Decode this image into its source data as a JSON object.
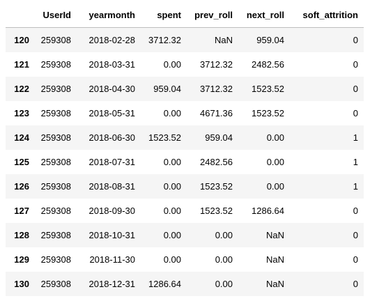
{
  "table": {
    "columns": [
      "",
      "UserId",
      "yearmonth",
      "spent",
      "prev_roll",
      "next_roll",
      "soft_attrition"
    ],
    "rows": [
      {
        "index": "120",
        "UserId": "259308",
        "yearmonth": "2018-02-28",
        "spent": "3712.32",
        "prev_roll": "NaN",
        "next_roll": "959.04",
        "soft_attrition": "0"
      },
      {
        "index": "121",
        "UserId": "259308",
        "yearmonth": "2018-03-31",
        "spent": "0.00",
        "prev_roll": "3712.32",
        "next_roll": "2482.56",
        "soft_attrition": "0"
      },
      {
        "index": "122",
        "UserId": "259308",
        "yearmonth": "2018-04-30",
        "spent": "959.04",
        "prev_roll": "3712.32",
        "next_roll": "1523.52",
        "soft_attrition": "0"
      },
      {
        "index": "123",
        "UserId": "259308",
        "yearmonth": "2018-05-31",
        "spent": "0.00",
        "prev_roll": "4671.36",
        "next_roll": "1523.52",
        "soft_attrition": "0"
      },
      {
        "index": "124",
        "UserId": "259308",
        "yearmonth": "2018-06-30",
        "spent": "1523.52",
        "prev_roll": "959.04",
        "next_roll": "0.00",
        "soft_attrition": "1"
      },
      {
        "index": "125",
        "UserId": "259308",
        "yearmonth": "2018-07-31",
        "spent": "0.00",
        "prev_roll": "2482.56",
        "next_roll": "0.00",
        "soft_attrition": "1"
      },
      {
        "index": "126",
        "UserId": "259308",
        "yearmonth": "2018-08-31",
        "spent": "0.00",
        "prev_roll": "1523.52",
        "next_roll": "0.00",
        "soft_attrition": "1"
      },
      {
        "index": "127",
        "UserId": "259308",
        "yearmonth": "2018-09-30",
        "spent": "0.00",
        "prev_roll": "1523.52",
        "next_roll": "1286.64",
        "soft_attrition": "0"
      },
      {
        "index": "128",
        "UserId": "259308",
        "yearmonth": "2018-10-31",
        "spent": "0.00",
        "prev_roll": "0.00",
        "next_roll": "NaN",
        "soft_attrition": "0"
      },
      {
        "index": "129",
        "UserId": "259308",
        "yearmonth": "2018-11-30",
        "spent": "0.00",
        "prev_roll": "0.00",
        "next_roll": "NaN",
        "soft_attrition": "0"
      },
      {
        "index": "130",
        "UserId": "259308",
        "yearmonth": "2018-12-31",
        "spent": "1286.64",
        "prev_roll": "0.00",
        "next_roll": "NaN",
        "soft_attrition": "0"
      }
    ]
  }
}
